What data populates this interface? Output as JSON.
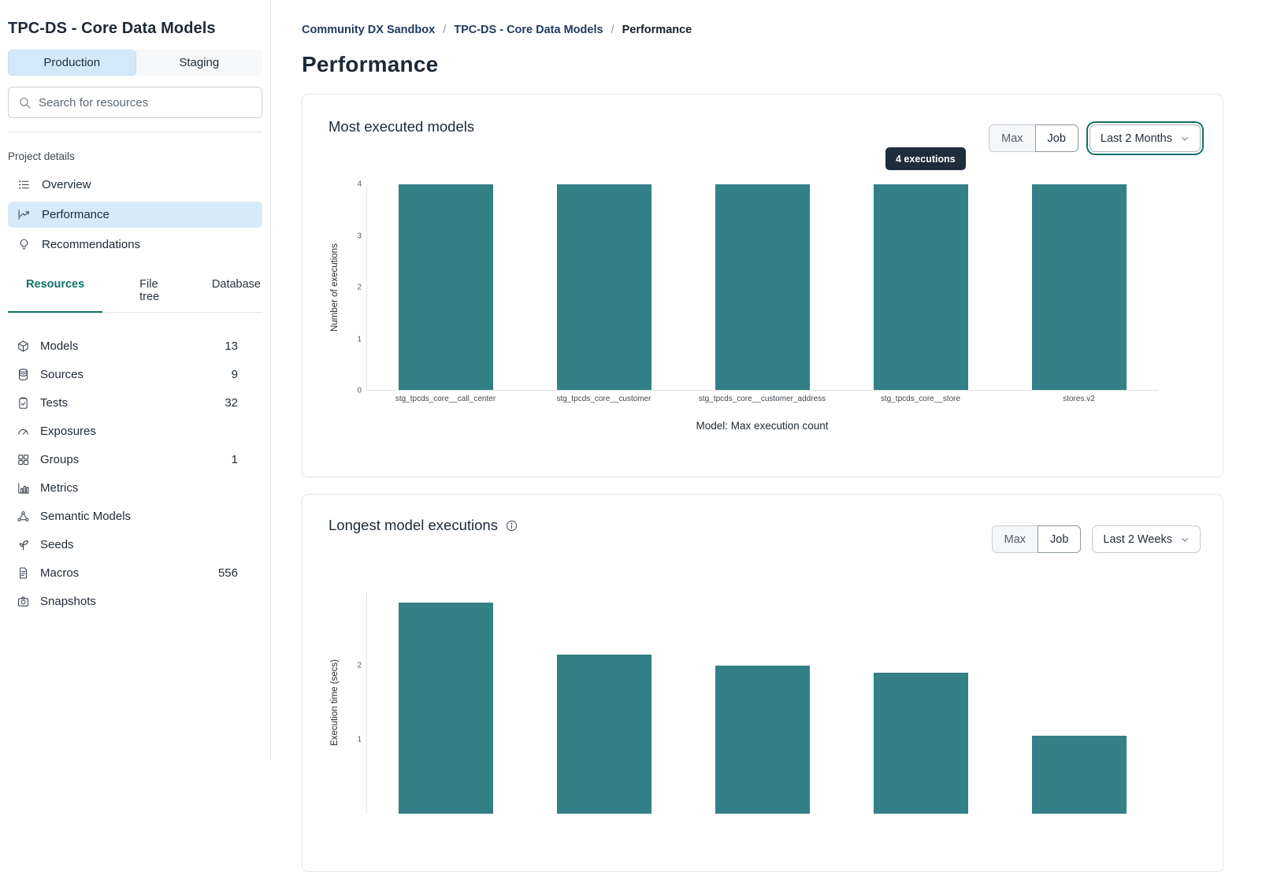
{
  "colors": {
    "accent_teal": "#0d7468",
    "bar_teal": "#338087",
    "selected_blue": "#d7eafa",
    "tooltip_bg": "#1e2c3c",
    "breadcrumb_link": "#1e3a5c"
  },
  "sidebar": {
    "project_title": "TPC-DS - Core Data Models",
    "env_toggle": {
      "production": "Production",
      "staging": "Staging",
      "selected": "Production"
    },
    "search_placeholder": "Search for resources",
    "section_label": "Project details",
    "nav_items": [
      {
        "label": "Overview",
        "icon": "list-icon",
        "active": false
      },
      {
        "label": "Performance",
        "icon": "trend-chart-icon",
        "active": true
      },
      {
        "label": "Recommendations",
        "icon": "lightbulb-icon",
        "active": false
      }
    ],
    "tabs": [
      {
        "label": "Resources",
        "active": true
      },
      {
        "label": "File tree",
        "active": false
      },
      {
        "label": "Database",
        "active": false
      }
    ],
    "resources": [
      {
        "label": "Models",
        "count": "13",
        "icon": "cube-icon"
      },
      {
        "label": "Sources",
        "count": "9",
        "icon": "database-icon"
      },
      {
        "label": "Tests",
        "count": "32",
        "icon": "clipboard-check-icon"
      },
      {
        "label": "Exposures",
        "count": "",
        "icon": "gauge-icon"
      },
      {
        "label": "Groups",
        "count": "1",
        "icon": "grid-icon"
      },
      {
        "label": "Metrics",
        "count": "",
        "icon": "bar-chart-icon"
      },
      {
        "label": "Semantic Models",
        "count": "",
        "icon": "semantic-network-icon"
      },
      {
        "label": "Seeds",
        "count": "",
        "icon": "seedling-icon"
      },
      {
        "label": "Macros",
        "count": "556",
        "icon": "document-icon"
      },
      {
        "label": "Snapshots",
        "count": "",
        "icon": "camera-icon"
      }
    ]
  },
  "breadcrumb": {
    "links": [
      "Community DX Sandbox",
      "TPC-DS - Core Data Models"
    ],
    "separator": "/",
    "current": "Performance"
  },
  "page_title": "Performance",
  "cards": [
    {
      "title": "Most executed models",
      "toggle": {
        "max": "Max",
        "job": "Job"
      },
      "range_label": "Last 2 Months",
      "tooltip": "4 executions"
    },
    {
      "title": "Longest model executions",
      "toggle": {
        "max": "Max",
        "job": "Job"
      },
      "range_label": "Last 2 Weeks"
    }
  ],
  "chart_data": [
    {
      "type": "bar",
      "title": "Most executed models",
      "categories": [
        "stg_tpcds_core__call_center",
        "stg_tpcds_core__customer",
        "stg_tpcds_core__customer_address",
        "stg_tpcds_core__store",
        "stores.v2"
      ],
      "values": [
        4,
        4,
        4,
        4,
        4
      ],
      "xlabel": "Model: Max execution count",
      "ylabel": "Number of executions",
      "ylim": [
        0,
        4
      ],
      "yticks": [
        0,
        1,
        2,
        3,
        4
      ],
      "bar_color": "#338087",
      "grid": false,
      "tooltip": {
        "text": "4 executions",
        "bar_index": 3
      }
    },
    {
      "type": "bar",
      "title": "Longest model executions",
      "categories": [],
      "values": [
        2.85,
        2.15,
        2.0,
        1.9,
        1.05
      ],
      "xlabel": "",
      "ylabel": "Execution time (secs)",
      "ylim": [
        0,
        3
      ],
      "yticks": [
        1,
        2
      ],
      "bar_color": "#338087",
      "grid": false,
      "note": "chart clipped at bottom of viewport"
    }
  ]
}
